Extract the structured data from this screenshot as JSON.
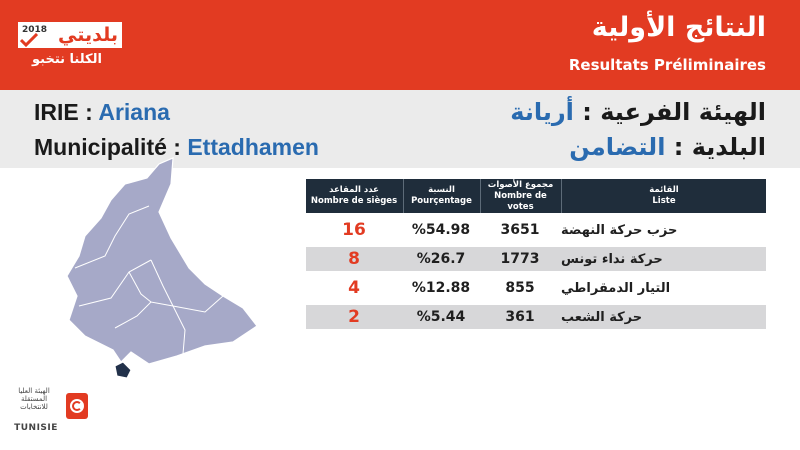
{
  "header": {
    "brand": {
      "year": "2018",
      "word": "بلديتي",
      "slogan": "الكلنا نتخبو"
    },
    "title_ar": "النتائج الأولية",
    "title_fr": "Resultats Préliminaires"
  },
  "info": {
    "irie_label": "IRIE : ",
    "irie_value": "Ariana",
    "muni_label": "Municipalité : ",
    "muni_value": "Ettadhamen",
    "ar_irie_label": "الهيئة الفرعية : ",
    "ar_irie_value": "أريانة",
    "ar_muni_label": "البلدية : ",
    "ar_muni_value": "التضامن"
  },
  "table": {
    "headers": {
      "seats_ar": "عدد المقاعد",
      "seats_fr": "Nombre de sièges",
      "pct_ar": "النسبة",
      "pct_fr": "Pourçentage",
      "votes_ar": "مجموع الأصوات",
      "votes_fr": "Nombre de votes",
      "list_ar": "القائمة",
      "list_fr": "Liste"
    },
    "rows": [
      {
        "list": "حزب حركة النهضة",
        "votes": "3651",
        "pct": "%54.98",
        "seats": "16"
      },
      {
        "list": "حركة نداء تونس",
        "votes": "1773",
        "pct": "%26.7",
        "seats": "8"
      },
      {
        "list": "التيار الدمقراطي",
        "votes": "855",
        "pct": "%12.88",
        "seats": "4"
      },
      {
        "list": "حركة الشعب",
        "votes": "361",
        "pct": "%5.44",
        "seats": "2"
      }
    ]
  },
  "logo": {
    "text_ar": "الهيئة العليا المستقلة للانتخابات",
    "name": "TUNISIE"
  },
  "colors": {
    "accent": "#e23b22",
    "header_dark": "#1f2d3b",
    "value_blue": "#2a6bb0",
    "map_fill": "#a6a9c8"
  },
  "icons": {
    "map": "ettadhamen-district-map-icon",
    "flag": "tunisia-flag-icon",
    "check": "checkmark-icon"
  }
}
